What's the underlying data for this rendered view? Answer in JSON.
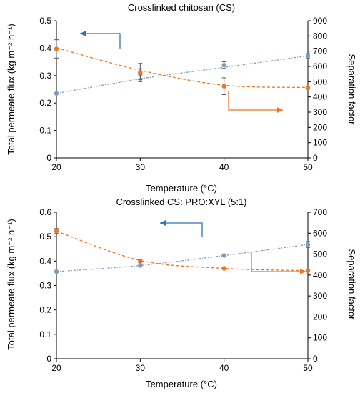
{
  "chart_data": [
    {
      "type": "line",
      "title": "Crosslinked chitosan (CS)",
      "xlabel": "Temperature (°C)",
      "ylabel_left": "Total permeate flux (kg m⁻² h⁻¹)",
      "ylabel_right": "Separation factor",
      "x": [
        20,
        30,
        40,
        50
      ],
      "xlim": [
        20,
        50
      ],
      "xticks": [
        "20",
        "30",
        "40",
        "50"
      ],
      "ylim_left": [
        0,
        0.5
      ],
      "yticks_left": [
        "0",
        "0.1",
        "0.2",
        "0.3",
        "0.4",
        "0.5"
      ],
      "ylim_right": [
        0,
        900
      ],
      "yticks_right": [
        "0",
        "100",
        "200",
        "300",
        "400",
        "500",
        "600",
        "700",
        "800",
        "900"
      ],
      "grid": false,
      "series": [
        {
          "axis": "left",
          "color": "#7f9bbf",
          "values": [
            0.235,
            0.305,
            0.338,
            0.372
          ],
          "errors": [
            0.0,
            0.02,
            0.012,
            0.008
          ],
          "trend": [
            0.235,
            0.288,
            0.33,
            0.372
          ]
        },
        {
          "axis": "right",
          "color": "#f07320",
          "values": [
            715,
            560,
            470,
            460
          ],
          "errors": [
            60,
            60,
            55,
            0
          ],
          "trend": [
            722,
            575,
            477,
            462
          ]
        }
      ],
      "arrows": [
        {
          "color": "#2e75b6",
          "direction": "left"
        },
        {
          "color": "#f07320",
          "direction": "right"
        }
      ]
    },
    {
      "type": "line",
      "title": "Crosslinked CS: PRO:XYL (5:1)",
      "xlabel": "Temperature (°C)",
      "ylabel_left": "Total permeate flux (kg m⁻² h⁻¹)",
      "ylabel_right": "Separation factor",
      "x": [
        20,
        30,
        40,
        50
      ],
      "xlim": [
        20,
        50
      ],
      "xticks": [
        "20",
        "30",
        "40",
        "50"
      ],
      "ylim_left": [
        0,
        0.6
      ],
      "yticks_left": [
        "0",
        "0.1",
        "0.2",
        "0.3",
        "0.4",
        "0.5",
        "0.6"
      ],
      "ylim_right": [
        0,
        700
      ],
      "yticks_right": [
        "0",
        "100",
        "200",
        "300",
        "400",
        "500",
        "600",
        "700"
      ],
      "grid": false,
      "series": [
        {
          "axis": "left",
          "color": "#7f9bbf",
          "values": [
            0.357,
            0.382,
            0.423,
            0.468
          ],
          "errors": [
            0.0,
            0.006,
            0.004,
            0.012
          ],
          "trend": [
            0.357,
            0.382,
            0.423,
            0.468
          ]
        },
        {
          "axis": "right",
          "color": "#f07320",
          "values": [
            610,
            466,
            432,
            421
          ],
          "errors": [
            12,
            6,
            4,
            4
          ],
          "trend": [
            610,
            470,
            432,
            421
          ]
        }
      ],
      "arrows": [
        {
          "color": "#2e75b6",
          "direction": "left"
        },
        {
          "color": "#f07320",
          "direction": "right"
        }
      ]
    }
  ]
}
